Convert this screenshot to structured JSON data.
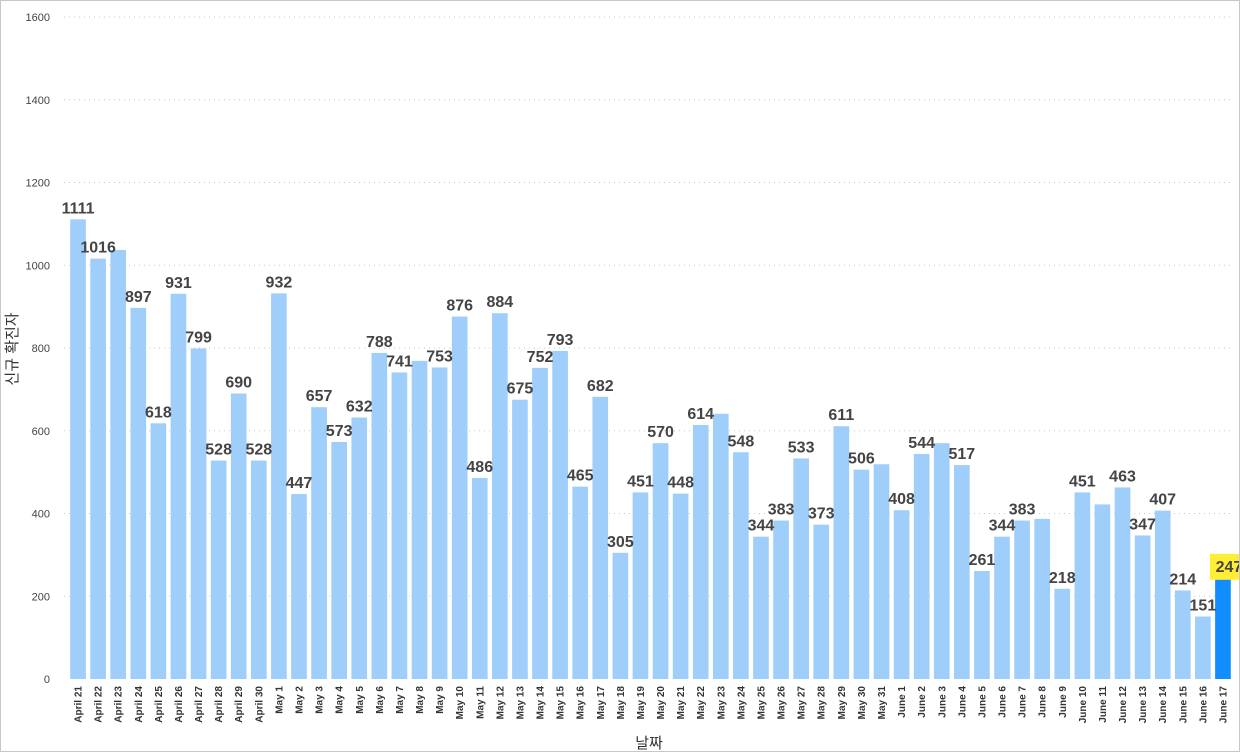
{
  "chart_data": {
    "type": "bar",
    "xlabel": "날짜",
    "ylabel": "신규 확진자",
    "ylim": [
      0,
      1600
    ],
    "yticks": [
      0,
      200,
      400,
      600,
      800,
      1000,
      1200,
      1400,
      1600
    ],
    "grid": true,
    "colors": {
      "bar": "#9fcefa",
      "highlight": "#118dff",
      "highlight_label_bg": "#ffee33",
      "label": "#444444"
    },
    "highlight_index": 57,
    "categories": [
      "April 21",
      "April 22",
      "April 23",
      "April 24",
      "April 25",
      "April 26",
      "April 27",
      "April 28",
      "April 29",
      "April 30",
      "May 1",
      "May 2",
      "May 3",
      "May 4",
      "May 5",
      "May 6",
      "May 7",
      "May 8",
      "May 9",
      "May 10",
      "May 11",
      "May 12",
      "May 13",
      "May 14",
      "May 15",
      "May 16",
      "May 17",
      "May 18",
      "May 19",
      "May 20",
      "May 21",
      "May 22",
      "May 23",
      "May 24",
      "May 25",
      "May 26",
      "May 27",
      "May 28",
      "May 29",
      "May 30",
      "May 31",
      "June 1",
      "June 2",
      "June 3",
      "June 4",
      "June 5",
      "June 6",
      "June 7",
      "June 8",
      "June 9",
      "June 10",
      "June 11",
      "June 12",
      "June 13",
      "June 14",
      "June 15",
      "June 16",
      "June 17"
    ],
    "values": [
      1111,
      1016,
      1037,
      897,
      618,
      931,
      799,
      528,
      690,
      528,
      932,
      447,
      657,
      573,
      632,
      788,
      741,
      769,
      753,
      876,
      486,
      884,
      675,
      752,
      793,
      465,
      682,
      305,
      451,
      570,
      448,
      614,
      641,
      548,
      344,
      383,
      533,
      373,
      611,
      506,
      519,
      408,
      544,
      570,
      517,
      261,
      344,
      383,
      387,
      218,
      451,
      422,
      463,
      347,
      407,
      214,
      151,
      247
    ],
    "labels": [
      "1111",
      "1016",
      "",
      "897",
      "618",
      "931",
      "799",
      "528",
      "690",
      "528",
      "932",
      "447",
      "657",
      "573",
      "632",
      "788",
      "741",
      "",
      "753",
      "876",
      "486",
      "884",
      "675",
      "752",
      "793",
      "465",
      "682",
      "305",
      "451",
      "570",
      "448",
      "614",
      "",
      "548",
      "344",
      "383",
      "533",
      "373",
      "611",
      "506",
      "",
      "408",
      "544",
      "",
      "517",
      "261",
      "344",
      "383",
      "",
      "218",
      "451",
      "",
      "463",
      "347",
      "407",
      "214",
      "151",
      "247"
    ]
  }
}
